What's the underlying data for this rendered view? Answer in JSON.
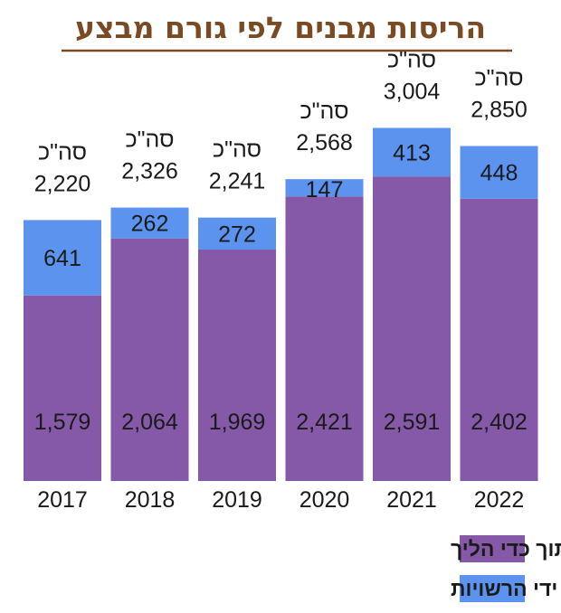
{
  "chart_data": {
    "type": "bar",
    "stacked": true,
    "title": "הריסות מבנים לפי גורם מבצע",
    "xlabel": "",
    "ylabel": "",
    "categories": [
      "2017",
      "2018",
      "2019",
      "2020",
      "2021",
      "2022"
    ],
    "series": [
      {
        "name": "הריסות עצמיות, כולל הריסות תוך כדי הליך",
        "color": "#8558a8",
        "values": [
          1579,
          2064,
          1969,
          2421,
          2591,
          2402
        ],
        "labels": [
          "1,579",
          "2,064",
          "1,969",
          "2,421",
          "2,591",
          "2,402"
        ]
      },
      {
        "name": "הריסות על ידי הרשויות",
        "color": "#5c93ee",
        "values": [
          641,
          262,
          272,
          147,
          413,
          448
        ],
        "labels": [
          "641",
          "262",
          "272",
          "147",
          "413",
          "448"
        ]
      }
    ],
    "total_prefix": "סה\"כ",
    "totals": [
      "2,220",
      "2,326",
      "2,241",
      "2,568",
      "3,004",
      "2,850"
    ],
    "ylim": [
      0,
      3400
    ],
    "grid": false,
    "legend_position": "bottom"
  }
}
